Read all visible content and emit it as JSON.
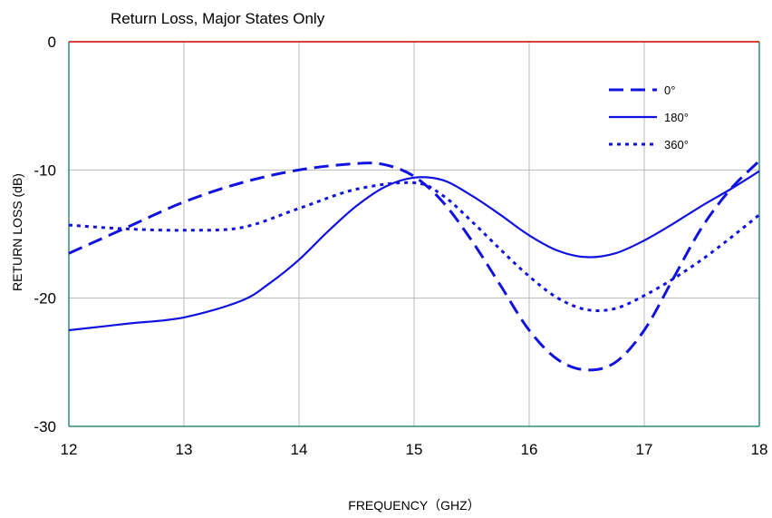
{
  "chart_data": {
    "type": "line",
    "title": "Return Loss, Major States Only",
    "xlabel": "FREQUENCY（GHZ）",
    "ylabel": "RETURN LOSS (dB)",
    "xlim": [
      12,
      18
    ],
    "ylim": [
      -30,
      0
    ],
    "xticks": [
      12,
      13,
      14,
      15,
      16,
      17,
      18
    ],
    "yticks": [
      0,
      -10,
      -20,
      -30
    ],
    "grid": true,
    "legend_position": "top-right",
    "colors": {
      "series": "#1212e0",
      "grid": "#b8b8b8",
      "top_border": "#cc0000",
      "frame": "#2e8b7a"
    },
    "series": [
      {
        "name": "0°",
        "style": "dashed",
        "points": [
          [
            12,
            -16.5
          ],
          [
            12.5,
            -14.5
          ],
          [
            13,
            -12.5
          ],
          [
            13.5,
            -11
          ],
          [
            14,
            -10
          ],
          [
            14.5,
            -9.5
          ],
          [
            14.75,
            -9.6
          ],
          [
            15,
            -10.5
          ],
          [
            15.25,
            -12.5
          ],
          [
            15.5,
            -15.5
          ],
          [
            15.75,
            -19
          ],
          [
            16,
            -22.5
          ],
          [
            16.25,
            -24.8
          ],
          [
            16.5,
            -25.6
          ],
          [
            16.75,
            -25
          ],
          [
            17,
            -22.5
          ],
          [
            17.25,
            -18.5
          ],
          [
            17.5,
            -14.5
          ],
          [
            17.75,
            -11.5
          ],
          [
            18,
            -9.3
          ]
        ]
      },
      {
        "name": "180°",
        "style": "solid",
        "points": [
          [
            12,
            -22.5
          ],
          [
            12.5,
            -22
          ],
          [
            13,
            -21.5
          ],
          [
            13.5,
            -20.2
          ],
          [
            13.75,
            -18.8
          ],
          [
            14,
            -17
          ],
          [
            14.25,
            -14.8
          ],
          [
            14.5,
            -12.8
          ],
          [
            14.75,
            -11.3
          ],
          [
            15,
            -10.6
          ],
          [
            15.25,
            -10.8
          ],
          [
            15.5,
            -12
          ],
          [
            15.75,
            -13.5
          ],
          [
            16,
            -15.1
          ],
          [
            16.25,
            -16.3
          ],
          [
            16.5,
            -16.8
          ],
          [
            16.75,
            -16.5
          ],
          [
            17,
            -15.5
          ],
          [
            17.25,
            -14.2
          ],
          [
            17.5,
            -12.8
          ],
          [
            17.75,
            -11.5
          ],
          [
            18,
            -10.1
          ]
        ]
      },
      {
        "name": "360°",
        "style": "dotted",
        "points": [
          [
            12,
            -14.3
          ],
          [
            12.5,
            -14.6
          ],
          [
            13,
            -14.7
          ],
          [
            13.5,
            -14.5
          ],
          [
            14,
            -13
          ],
          [
            14.5,
            -11.5
          ],
          [
            15,
            -11
          ],
          [
            15.25,
            -12
          ],
          [
            15.5,
            -14
          ],
          [
            15.75,
            -16.2
          ],
          [
            16,
            -18.3
          ],
          [
            16.25,
            -20
          ],
          [
            16.5,
            -20.9
          ],
          [
            16.75,
            -20.8
          ],
          [
            17,
            -19.8
          ],
          [
            17.25,
            -18.5
          ],
          [
            17.5,
            -17
          ],
          [
            17.75,
            -15.3
          ],
          [
            18,
            -13.5
          ]
        ]
      }
    ]
  }
}
